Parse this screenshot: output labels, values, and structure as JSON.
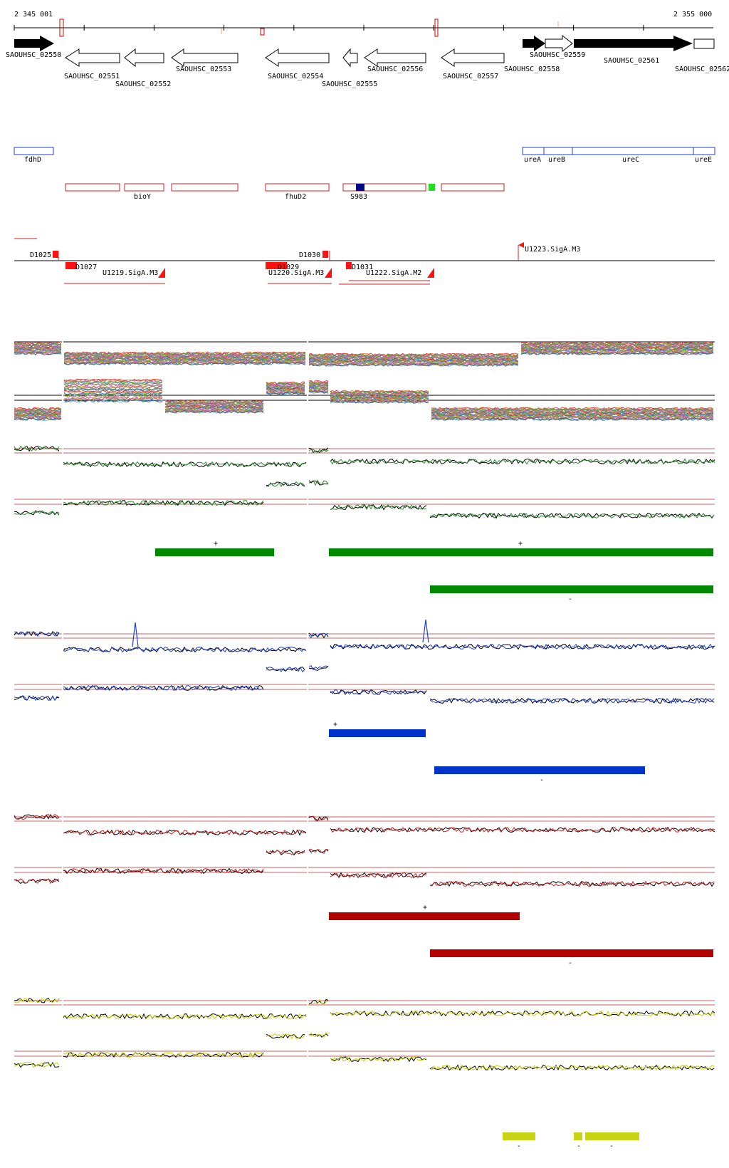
{
  "ruler": {
    "start_label": "2 345 001",
    "end_label": "2 355 000"
  },
  "genes_forward": [
    {
      "name": "SAOUHSC_02550",
      "filled": true
    },
    {
      "name": "SAOUHSC_02558",
      "filled": true
    },
    {
      "name": "SAOUHSC_02559",
      "filled": false
    },
    {
      "name": "SAOUHSC_02561",
      "filled": true
    },
    {
      "name": "SAOUHSC_02562",
      "filled": false
    }
  ],
  "genes_reverse": [
    {
      "name": "SAOUHSC_02551"
    },
    {
      "name": "SAOUHSC_02552"
    },
    {
      "name": "SAOUHSC_02553"
    },
    {
      "name": "SAOUHSC_02554"
    },
    {
      "name": "SAOUHSC_02555"
    },
    {
      "name": "SAOUHSC_02556"
    },
    {
      "name": "SAOUHSC_02557"
    }
  ],
  "annotations_forward": [
    "fdhD",
    "ureA",
    "ureB",
    "ureC",
    "ureE"
  ],
  "annotations_reverse": [
    "bioY",
    "fhuD2",
    "S983"
  ],
  "regulatory_features": {
    "above": [
      "D1025",
      "D1030",
      "U1223.SigA.M3"
    ],
    "below": [
      "D1027",
      "U1219.SigA.M3",
      "U1220.SigA.M3",
      "D1029",
      "D1031",
      "U1222.SigA.M2"
    ]
  },
  "tracks": [
    {
      "id": "green",
      "color": "#2d8a2d",
      "bar_color": "#008800",
      "plus_mark": "+",
      "minus_mark": "-"
    },
    {
      "id": "blue",
      "color": "#1f3fd6",
      "bar_color": "#0033cc",
      "plus_mark": "+",
      "minus_mark": "-"
    },
    {
      "id": "red",
      "color": "#cc2222",
      "bar_color": "#b30000",
      "plus_mark": "+",
      "minus_mark": "-"
    },
    {
      "id": "yellow",
      "color": "#c8d400",
      "bar_color": "#c8d414",
      "minus_mark": "-"
    }
  ]
}
